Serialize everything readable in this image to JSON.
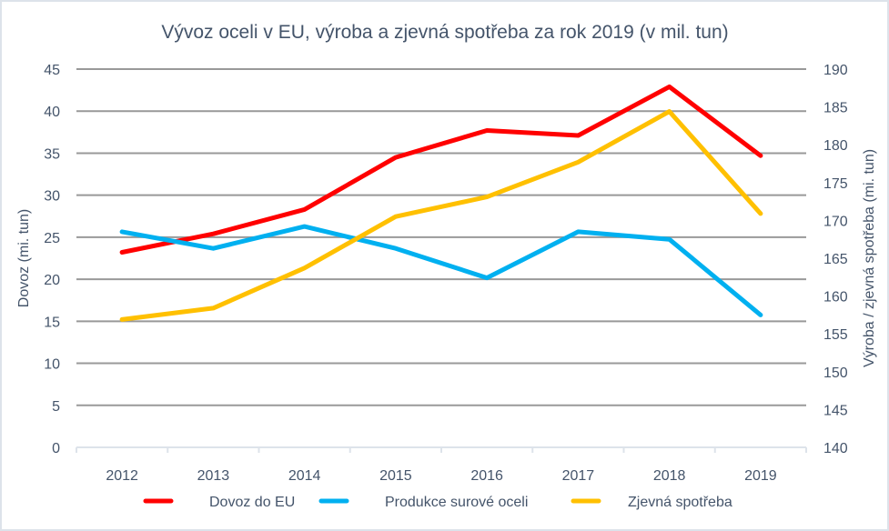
{
  "chart_data": {
    "type": "line",
    "title": "Vývoz oceli v EU, výroba a zjevná spotřeba za rok 2019 (v mil. tun)",
    "xlabel": "",
    "ylabel": "Dovoz (mi. tun)",
    "ylabel_right": "Výroba / zjevná spotřeba (mi. tun)",
    "categories": [
      "2012",
      "2013",
      "2014",
      "2015",
      "2016",
      "2017",
      "2018",
      "2019"
    ],
    "ylim": [
      0,
      45
    ],
    "y_ticks": [
      "0",
      "5",
      "10",
      "15",
      "20",
      "25",
      "30",
      "35",
      "40",
      "45"
    ],
    "ylim_right": [
      140,
      190
    ],
    "y_ticks_right": [
      "140",
      "145",
      "150",
      "155",
      "160",
      "165",
      "170",
      "175",
      "180",
      "185",
      "190"
    ],
    "grid": true,
    "legend_position": "bottom",
    "series": [
      {
        "name": "Dovoz do EU",
        "axis": "left",
        "color": "#ff0000",
        "values": [
          23.2,
          25.4,
          28.3,
          34.5,
          37.7,
          37.1,
          42.9,
          34.7
        ]
      },
      {
        "name": "Produkce surové oceli",
        "axis": "right",
        "color": "#00b0f0",
        "values": [
          168.5,
          166.3,
          169.2,
          166.3,
          162.4,
          168.5,
          167.5,
          157.5
        ]
      },
      {
        "name": "Zjevná spotřeba",
        "axis": "right",
        "color": "#ffc000",
        "values": [
          156.9,
          158.4,
          163.7,
          170.5,
          173.1,
          177.7,
          184.4,
          170.9
        ]
      }
    ]
  }
}
